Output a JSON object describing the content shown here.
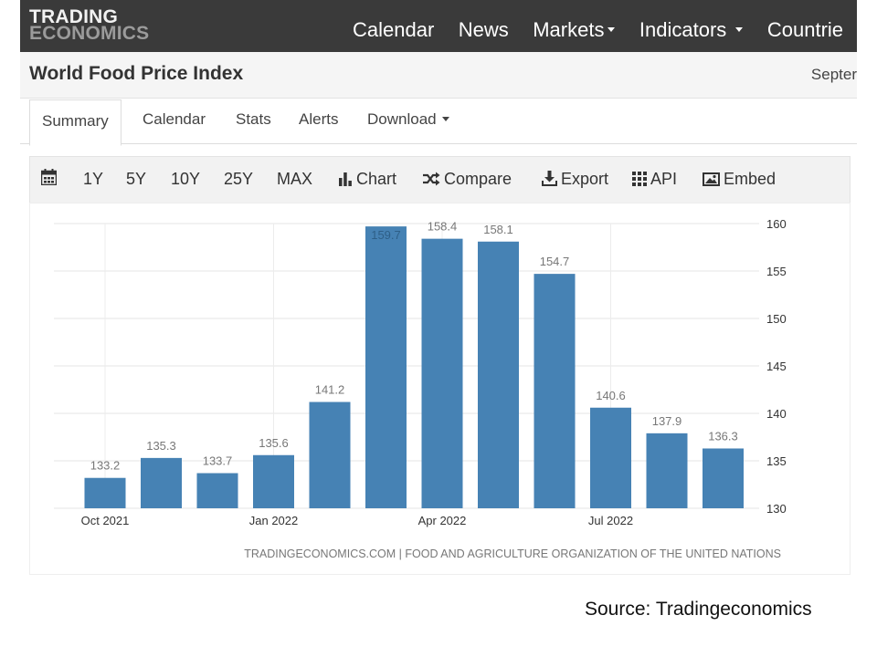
{
  "brand": {
    "line1": "TRADING",
    "line2": "ECONOMICS"
  },
  "nav": {
    "calendar": "Calendar",
    "news": "News",
    "markets": "Markets",
    "indicators": "Indicators",
    "countries": "Countrie"
  },
  "page": {
    "title": "World Food Price Index",
    "date": "Septer"
  },
  "tabs": {
    "summary": "Summary",
    "calendar": "Calendar",
    "stats": "Stats",
    "alerts": "Alerts",
    "download": "Download"
  },
  "toolbar": {
    "y1": "1Y",
    "y5": "5Y",
    "y10": "10Y",
    "y25": "25Y",
    "max": "MAX",
    "chart": "Chart",
    "compare": "Compare",
    "export": "Export",
    "api": "API",
    "embed": "Embed"
  },
  "colors": {
    "bar": "#4682b4",
    "topbar": "#3a3a3a",
    "label": "#777777"
  },
  "chart_data": {
    "type": "bar",
    "categories": [
      "Oct 2021",
      "Nov 2021",
      "Dec 2021",
      "Jan 2022",
      "Feb 2022",
      "Mar 2022",
      "Apr 2022",
      "May 2022",
      "Jun 2022",
      "Jul 2022",
      "Aug 2022",
      "Sep 2022"
    ],
    "values": [
      133.2,
      135.3,
      133.7,
      135.6,
      141.2,
      159.7,
      158.4,
      158.1,
      154.7,
      140.6,
      137.9,
      136.3
    ],
    "x_tick_labels": [
      "Oct 2021",
      "Jan 2022",
      "Apr 2022",
      "Jul 2022"
    ],
    "y_ticks": [
      130,
      135,
      140,
      145,
      150,
      155,
      160
    ],
    "ylim": [
      130,
      160
    ],
    "y_axis_side": "right",
    "grid": true,
    "credit": "TRADINGECONOMICS.COM | FOOD AND AGRICULTURE ORGANIZATION OF THE UNITED NATIONS"
  },
  "source_note": "Source: Tradingeconomics"
}
